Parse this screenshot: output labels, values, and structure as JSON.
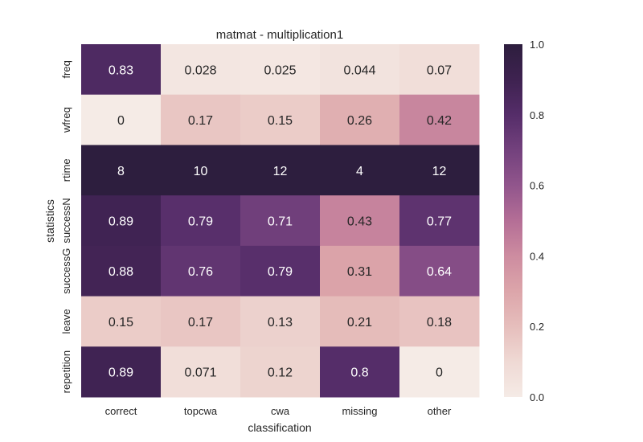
{
  "chart_data": {
    "type": "heatmap",
    "title": "matmat - multiplication1",
    "xlabel": "classification",
    "ylabel": "statistics",
    "columns": [
      "correct",
      "topcwa",
      "cwa",
      "missing",
      "other"
    ],
    "rows": [
      "freq",
      "wfreq",
      "rtime",
      "successN",
      "successG",
      "leave",
      "repetition"
    ],
    "values": [
      [
        0.83,
        0.028,
        0.025,
        0.044,
        0.07
      ],
      [
        0,
        0.17,
        0.15,
        0.26,
        0.42
      ],
      [
        8,
        10,
        12,
        4,
        12
      ],
      [
        0.89,
        0.79,
        0.71,
        0.43,
        0.77
      ],
      [
        0.88,
        0.76,
        0.79,
        0.31,
        0.64
      ],
      [
        0.15,
        0.17,
        0.13,
        0.21,
        0.18
      ],
      [
        0.89,
        0.071,
        0.12,
        0.8,
        0
      ]
    ],
    "labels": [
      [
        "0.83",
        "0.028",
        "0.025",
        "0.044",
        "0.07"
      ],
      [
        "0",
        "0.17",
        "0.15",
        "0.26",
        "0.42"
      ],
      [
        "8",
        "10",
        "12",
        "4",
        "12"
      ],
      [
        "0.89",
        "0.79",
        "0.71",
        "0.43",
        "0.77"
      ],
      [
        "0.88",
        "0.76",
        "0.79",
        "0.31",
        "0.64"
      ],
      [
        "0.15",
        "0.17",
        "0.13",
        "0.21",
        "0.18"
      ],
      [
        "0.89",
        "0.071",
        "0.12",
        "0.8",
        "0"
      ]
    ],
    "colorbar": {
      "range": [
        0,
        1
      ],
      "ticks": [
        "0.0",
        "0.2",
        "0.4",
        "0.6",
        "0.8",
        "1.0"
      ],
      "low_color": "#f5ebe6",
      "high_color": "#2d1e3e"
    },
    "grid": false
  }
}
